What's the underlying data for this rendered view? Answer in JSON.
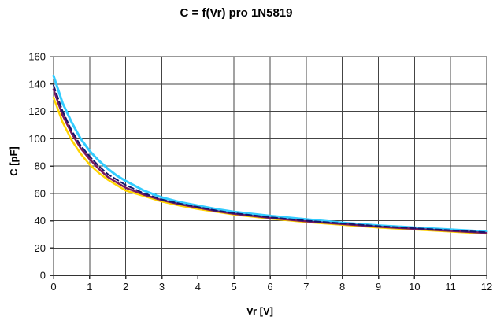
{
  "figure": {
    "background": "#ffffff"
  },
  "chart_data": {
    "type": "line",
    "title": "C = f(Vr) pro 1N5819",
    "xlabel": "Vr [V]",
    "ylabel": "C [pF]",
    "xlim": [
      0,
      12
    ],
    "ylim": [
      0,
      160
    ],
    "xtick_step": 1,
    "ytick_step": 20,
    "grid": true,
    "legend": "none",
    "axis_color": "#333333",
    "grid_color": "#444444",
    "x": [
      0,
      0.25,
      0.5,
      0.75,
      1,
      1.25,
      1.5,
      1.75,
      2,
      2.5,
      3,
      3.5,
      4,
      4.5,
      5,
      6,
      7,
      8,
      9,
      10,
      11,
      12
    ],
    "series": [
      {
        "name": "light-blue",
        "color": "#33CCFF",
        "width": 3,
        "dash": "",
        "values": [
          146,
          126,
          112,
          100,
          91,
          84,
          78,
          73,
          69,
          62,
          57,
          53.5,
          51,
          48.5,
          46.5,
          43.5,
          41,
          38.5,
          36.5,
          35,
          33.5,
          32
        ]
      },
      {
        "name": "yellow",
        "color": "#FFD400",
        "width": 2.5,
        "dash": "",
        "values": [
          130,
          112,
          99,
          89,
          81,
          75,
          70,
          66,
          62,
          58,
          54,
          51,
          48.5,
          46.5,
          44.5,
          41.5,
          39,
          37,
          35,
          33.5,
          32,
          30.5
        ]
      },
      {
        "name": "violet",
        "color": "#7A1A5E",
        "width": 2.5,
        "dash": "",
        "values": [
          136,
          117,
          104,
          93,
          85,
          78,
          72,
          68,
          64,
          59,
          55,
          52,
          49.5,
          47,
          45,
          42,
          39.5,
          37.5,
          35.5,
          34,
          32.5,
          31
        ]
      },
      {
        "name": "dark-blue-dashed",
        "color": "#16166B",
        "width": 2,
        "dash": "7 4",
        "values": [
          139,
          120,
          106,
          95,
          87,
          80,
          74,
          70,
          66,
          60,
          55.5,
          52.5,
          50,
          47.5,
          45.5,
          42.5,
          40,
          38,
          36,
          34.5,
          33,
          31.5
        ]
      }
    ]
  }
}
